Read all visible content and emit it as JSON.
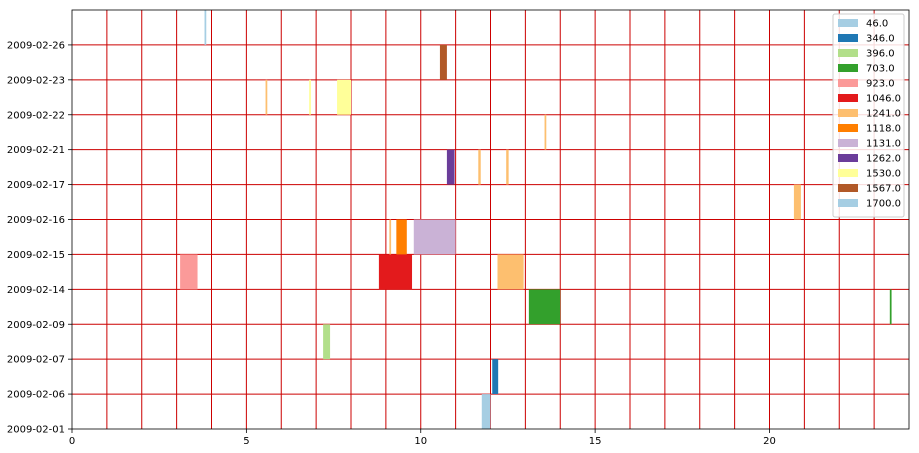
{
  "chart_data": {
    "type": "bar",
    "orientation": "horizontal-timeline",
    "title": "",
    "xlabel": "",
    "ylabel": "",
    "xlim": [
      0,
      24
    ],
    "x_ticks": [
      0,
      5,
      10,
      15,
      20
    ],
    "y_categories": [
      "2009-02-01",
      "2009-02-06",
      "2009-02-07",
      "2009-02-09",
      "2009-02-14",
      "2009-02-15",
      "2009-02-16",
      "2009-02-17",
      "2009-02-21",
      "2009-02-22",
      "2009-02-23",
      "2009-02-26"
    ],
    "grid": {
      "vertical_every": 1,
      "horizontal_at_categories": true,
      "color": "#cc0000"
    },
    "legend": {
      "placement": "top-right",
      "entries": [
        {
          "label": "46.0",
          "color": "#a6cee3"
        },
        {
          "label": "346.0",
          "color": "#1f78b4"
        },
        {
          "label": "396.0",
          "color": "#b2df8a"
        },
        {
          "label": "703.0",
          "color": "#33a02c"
        },
        {
          "label": "923.0",
          "color": "#fb9a99"
        },
        {
          "label": "1046.0",
          "color": "#e31a1c"
        },
        {
          "label": "1241.0",
          "color": "#fdbf6f"
        },
        {
          "label": "1118.0",
          "color": "#ff7f00"
        },
        {
          "label": "1131.0",
          "color": "#cab2d6"
        },
        {
          "label": "1262.0",
          "color": "#6a3d9a"
        },
        {
          "label": "1530.0",
          "color": "#ffff99"
        },
        {
          "label": "1567.0",
          "color": "#b15928"
        },
        {
          "label": "1700.0",
          "color": "#a6cee3"
        }
      ]
    },
    "bars": [
      {
        "series": "46.0",
        "start": 11.75,
        "end": 12.0,
        "y_from": "2009-02-01",
        "y_to": "2009-02-06"
      },
      {
        "series": "346.0",
        "start": 12.05,
        "end": 12.22,
        "y_from": "2009-02-06",
        "y_to": "2009-02-07"
      },
      {
        "series": "396.0",
        "start": 7.2,
        "end": 7.4,
        "y_from": "2009-02-07",
        "y_to": "2009-02-09"
      },
      {
        "series": "703.0",
        "start": 13.1,
        "end": 14.0,
        "y_from": "2009-02-09",
        "y_to": "2009-02-14"
      },
      {
        "series": "703.0",
        "start": 23.45,
        "end": 23.5,
        "y_from": "2009-02-09",
        "y_to": "2009-02-14"
      },
      {
        "series": "923.0",
        "start": 3.1,
        "end": 3.6,
        "y_from": "2009-02-14",
        "y_to": "2009-02-15"
      },
      {
        "series": "1046.0",
        "start": 8.8,
        "end": 9.75,
        "y_from": "2009-02-14",
        "y_to": "2009-02-15"
      },
      {
        "series": "1241.0",
        "start": 12.2,
        "end": 12.95,
        "y_from": "2009-02-14",
        "y_to": "2009-02-15"
      },
      {
        "series": "1241.0",
        "start": 9.1,
        "end": 9.15,
        "y_from": "2009-02-15",
        "y_to": "2009-02-16"
      },
      {
        "series": "1118.0",
        "start": 9.3,
        "end": 9.6,
        "y_from": "2009-02-15",
        "y_to": "2009-02-16"
      },
      {
        "series": "1131.0",
        "start": 9.8,
        "end": 11.0,
        "y_from": "2009-02-15",
        "y_to": "2009-02-16"
      },
      {
        "series": "1241.0",
        "start": 20.7,
        "end": 20.9,
        "y_from": "2009-02-16",
        "y_to": "2009-02-17"
      },
      {
        "series": "1262.0",
        "start": 10.75,
        "end": 10.97,
        "y_from": "2009-02-17",
        "y_to": "2009-02-21"
      },
      {
        "series": "1241.0",
        "start": 11.65,
        "end": 11.72,
        "y_from": "2009-02-17",
        "y_to": "2009-02-21"
      },
      {
        "series": "1241.0",
        "start": 12.45,
        "end": 12.52,
        "y_from": "2009-02-17",
        "y_to": "2009-02-21"
      },
      {
        "series": "1241.0",
        "start": 13.55,
        "end": 13.6,
        "y_from": "2009-02-21",
        "y_to": "2009-02-22"
      },
      {
        "series": "1241.0",
        "start": 5.55,
        "end": 5.6,
        "y_from": "2009-02-22",
        "y_to": "2009-02-23"
      },
      {
        "series": "1530.0",
        "start": 6.8,
        "end": 6.85,
        "y_from": "2009-02-22",
        "y_to": "2009-02-23"
      },
      {
        "series": "1530.0",
        "start": 7.6,
        "end": 8.0,
        "y_from": "2009-02-22",
        "y_to": "2009-02-23"
      },
      {
        "series": "1567.0",
        "start": 10.55,
        "end": 10.75,
        "y_from": "2009-02-23",
        "y_to": "2009-02-26"
      },
      {
        "series": "1700.0",
        "start": 3.8,
        "end": 3.85,
        "y_from": "2009-02-26",
        "y_to": "top"
      }
    ]
  }
}
